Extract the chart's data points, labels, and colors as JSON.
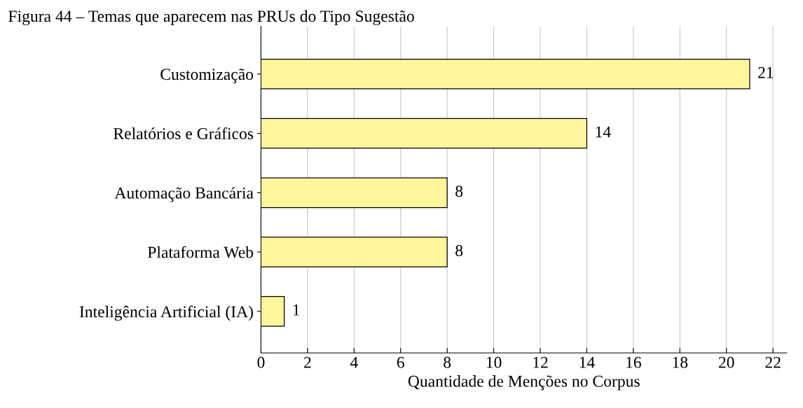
{
  "chart_data": {
    "type": "bar",
    "orientation": "horizontal",
    "title": "Figura 44 – Temas que aparecem nas PRUs do Tipo Sugestão",
    "xlabel": "Quantidade de Menções no Corpus",
    "categories": [
      "Customização",
      "Relatórios e Gráficos",
      "Automação Bancária",
      "Plataforma Web",
      "Inteligência Artificial (IA)"
    ],
    "values": [
      21,
      14,
      8,
      8,
      1
    ],
    "color": "#fff59d",
    "xlim": [
      0,
      22.6
    ],
    "xticks": [
      0,
      2,
      4,
      6,
      8,
      10,
      12,
      14,
      16,
      18,
      20,
      22
    ],
    "grid": "x",
    "data_labels": true
  }
}
